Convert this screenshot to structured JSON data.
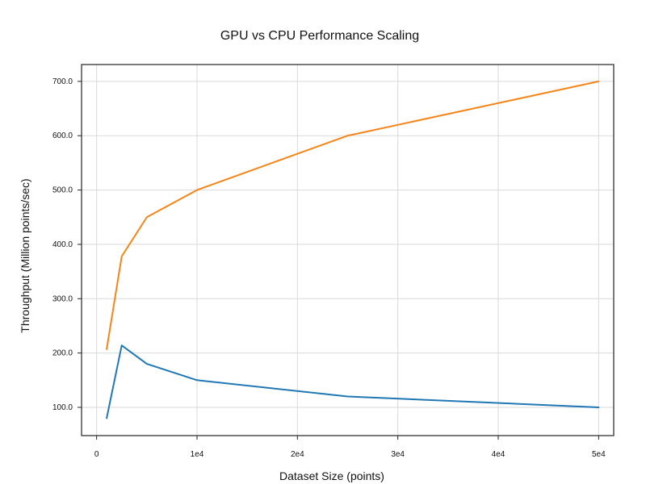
{
  "chart_data": {
    "type": "line",
    "title": "GPU vs CPU Performance Scaling",
    "xlabel": "Dataset Size (points)",
    "ylabel": "Throughput (Million points/sec)",
    "xlim": [
      -1500,
      51500
    ],
    "ylim": [
      48,
      731
    ],
    "xticks": [
      {
        "value": 0,
        "label": "0"
      },
      {
        "value": 10000,
        "label": "1e4"
      },
      {
        "value": 20000,
        "label": "2e4"
      },
      {
        "value": 30000,
        "label": "3e4"
      },
      {
        "value": 40000,
        "label": "4e4"
      },
      {
        "value": 50000,
        "label": "5e4"
      }
    ],
    "yticks": [
      {
        "value": 100,
        "label": "100.0"
      },
      {
        "value": 200,
        "label": "200.0"
      },
      {
        "value": 300,
        "label": "300.0"
      },
      {
        "value": 400,
        "label": "400.0"
      },
      {
        "value": 500,
        "label": "500.0"
      },
      {
        "value": 600,
        "label": "600.0"
      },
      {
        "value": 700,
        "label": "700.0"
      }
    ],
    "grid": true,
    "legend": "none",
    "series": [
      {
        "color": "#f58518",
        "x": [
          1000,
          2500,
          5000,
          10000,
          25000,
          50000
        ],
        "y": [
          207,
          378,
          450,
          500,
          600,
          700
        ]
      },
      {
        "color": "#1f77b4",
        "x": [
          1000,
          2500,
          5000,
          10000,
          25000,
          50000
        ],
        "y": [
          80,
          214,
          180,
          150,
          120,
          100
        ]
      }
    ],
    "colors": {
      "grid": "#d9d9d9",
      "axis": "#222222",
      "text": "#111111",
      "background": "#ffffff"
    }
  }
}
